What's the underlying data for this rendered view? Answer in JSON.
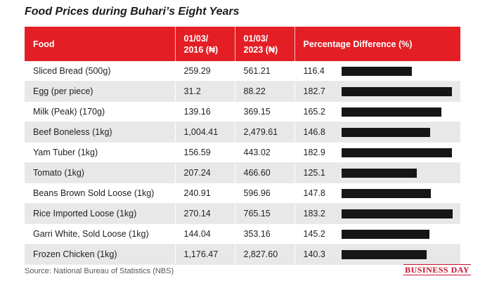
{
  "chart_data": {
    "type": "table",
    "title": "Food Prices during Buhari’s Eight Years",
    "columns": [
      "Food",
      "01/03/\n2016 (₦)",
      "01/03/\n2023 (₦)",
      "Percentage Difference (%)"
    ],
    "rows": [
      {
        "food": "Sliced Bread (500g)",
        "p2016": "259.29",
        "p2023": "561.21",
        "pct": "116.4",
        "pct_value": 116.4
      },
      {
        "food": "Egg (per piece)",
        "p2016": "31.2",
        "p2023": "88.22",
        "pct": "182.7",
        "pct_value": 182.7
      },
      {
        "food": "Milk (Peak) (170g)",
        "p2016": "139.16",
        "p2023": "369.15",
        "pct": "165.2",
        "pct_value": 165.2
      },
      {
        "food": "Beef Boneless (1kg)",
        "p2016": "1,004.41",
        "p2023": "2,479.61",
        "pct": "146.8",
        "pct_value": 146.8
      },
      {
        "food": "Yam Tuber (1kg)",
        "p2016": "156.59",
        "p2023": "443.02",
        "pct": "182.9",
        "pct_value": 182.9
      },
      {
        "food": "Tomato (1kg)",
        "p2016": "207.24",
        "p2023": "466.60",
        "pct": "125.1",
        "pct_value": 125.1
      },
      {
        "food": "Beans Brown Sold Loose (1kg)",
        "p2016": "240.91",
        "p2023": "596.96",
        "pct": "147.8",
        "pct_value": 147.8
      },
      {
        "food": "Rice Imported Loose (1kg)",
        "p2016": "270.14",
        "p2023": "765.15",
        "pct": "183.2",
        "pct_value": 183.2
      },
      {
        "food": "Garri White, Sold Loose (1kg)",
        "p2016": "144.04",
        "p2023": "353.16",
        "pct": "145.2",
        "pct_value": 145.2
      },
      {
        "food": "Frozen Chicken (1kg)",
        "p2016": "1,176.47",
        "p2023": "2,827.60",
        "pct": "140.3",
        "pct_value": 140.3
      }
    ],
    "bar_color": "#161616",
    "header_color": "#e31e24"
  },
  "source": "Source: National Bureau of Statistics (NBS)",
  "logo_text": "BUSINESS DAY"
}
